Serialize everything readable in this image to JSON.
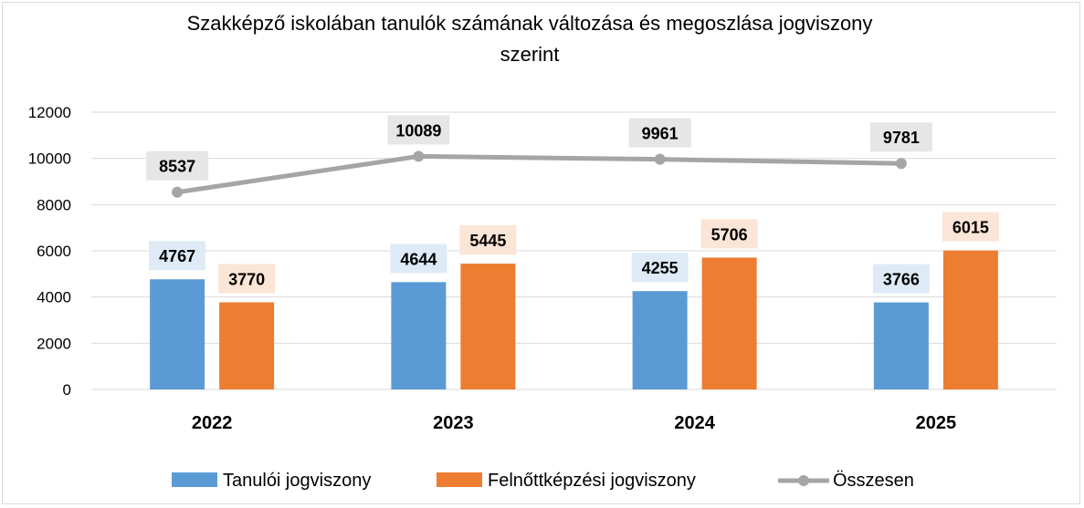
{
  "chart_data": {
    "type": "bar",
    "title_line1": "Szakképző iskolában tanulók számának változása és megoszlása jogviszony",
    "title_line2": "szerint",
    "categories": [
      "2022",
      "2023",
      "2024",
      "2025"
    ],
    "ylim": [
      0,
      12000
    ],
    "yticks": [
      "0",
      "2000",
      "4000",
      "6000",
      "8000",
      "10000",
      "12000"
    ],
    "grid": true,
    "legend_position": "bottom",
    "series": [
      {
        "name": "Tanulói jogviszony",
        "kind": "bar",
        "color": "#5b9bd5",
        "label_bg": "#deebf7",
        "values": [
          4767,
          4644,
          4255,
          3766
        ]
      },
      {
        "name": "Felnőttképzési jogviszony",
        "kind": "bar",
        "color": "#ed7d31",
        "label_bg": "#fbe5d6",
        "values": [
          3770,
          5445,
          5706,
          6015
        ]
      },
      {
        "name": "Összesen",
        "kind": "line",
        "color": "#a5a5a5",
        "label_bg": "#e7e6e6",
        "values": [
          8537,
          10089,
          9961,
          9781
        ]
      }
    ]
  }
}
